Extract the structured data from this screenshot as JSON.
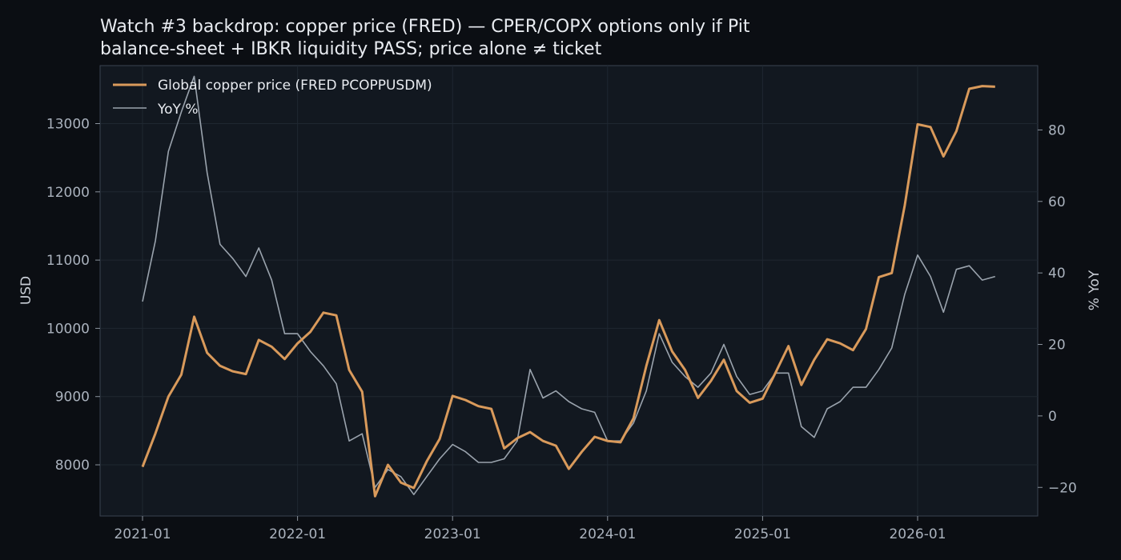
{
  "title_lines": [
    "Watch #3 backdrop: copper price (FRED) — CPER/COPX options only if Pit",
    "balance-sheet + IBKR liquidity PASS; price alone ≠ ticket"
  ],
  "colors": {
    "background": "#0b0e13",
    "plot": "#121820",
    "copper": "#d99a5b",
    "yoy": "#9aa3ad",
    "grid": "#1f2731"
  },
  "chart_data": {
    "type": "line",
    "title": "Watch #3 backdrop: copper price (FRED) — CPER/COPX options only if Pit balance-sheet + IBKR liquidity PASS; price alone ≠ ticket",
    "xlabel": "",
    "ylabel": "USD",
    "y2label": "% YoY",
    "x_ticks": [
      "2021-01",
      "2022-01",
      "2023-01",
      "2024-01",
      "2025-01",
      "2026-01"
    ],
    "ylim": [
      7250,
      13850
    ],
    "y_ticks": [
      8000,
      9000,
      10000,
      11000,
      12000,
      13000
    ],
    "y2lim": [
      -28,
      98
    ],
    "y2_ticks": [
      -20,
      0,
      20,
      40,
      60,
      80
    ],
    "y2_tick_labels": [
      "−20",
      "0",
      "20",
      "40",
      "60",
      "80"
    ],
    "legend_position": "top-left",
    "grid": true,
    "x": [
      "2021-01",
      "2021-02",
      "2021-03",
      "2021-04",
      "2021-05",
      "2021-06",
      "2021-07",
      "2021-08",
      "2021-09",
      "2021-10",
      "2021-11",
      "2021-12",
      "2022-01",
      "2022-02",
      "2022-03",
      "2022-04",
      "2022-05",
      "2022-06",
      "2022-07",
      "2022-08",
      "2022-09",
      "2022-10",
      "2022-11",
      "2022-12",
      "2023-01",
      "2023-02",
      "2023-03",
      "2023-04",
      "2023-05",
      "2023-06",
      "2023-07",
      "2023-08",
      "2023-09",
      "2023-10",
      "2023-11",
      "2023-12",
      "2024-01",
      "2024-02",
      "2024-03",
      "2024-04",
      "2024-05",
      "2024-06",
      "2024-07",
      "2024-08",
      "2024-09",
      "2024-10",
      "2024-11",
      "2024-12",
      "2025-01",
      "2025-02",
      "2025-03",
      "2025-04",
      "2025-05",
      "2025-06",
      "2025-07",
      "2025-08",
      "2025-09",
      "2025-10",
      "2025-11",
      "2025-12",
      "2026-01",
      "2026-02",
      "2026-03",
      "2026-04",
      "2026-05",
      "2026-06",
      "2026-07"
    ],
    "series": [
      {
        "name": "Global copper price (FRED PCOPPUSDM)",
        "axis": "left",
        "values": [
          7970,
          8460,
          9000,
          9320,
          10170,
          9640,
          9450,
          9370,
          9330,
          9830,
          9730,
          9550,
          9780,
          9950,
          10230,
          10190,
          9390,
          9070,
          7540,
          8000,
          7740,
          7660,
          8050,
          8380,
          9010,
          8950,
          8860,
          8820,
          8240,
          8390,
          8480,
          8350,
          8280,
          7940,
          8190,
          8410,
          8350,
          8330,
          8680,
          9450,
          10120,
          9660,
          9390,
          8980,
          9230,
          9540,
          9080,
          8910,
          8970,
          9350,
          9740,
          9170,
          9540,
          9840,
          9780,
          9680,
          9990,
          10750,
          10810,
          11800,
          12990,
          12950,
          12520,
          12890,
          13510,
          13550,
          13540
        ]
      },
      {
        "name": "YoY %",
        "axis": "right",
        "values": [
          32,
          49,
          74,
          85,
          95,
          68,
          48,
          44,
          39,
          47,
          38,
          23,
          23,
          18,
          14,
          9,
          -7,
          -5,
          -20,
          -15,
          -17,
          -22,
          -17,
          -12,
          -8,
          -10,
          -13,
          -13,
          -12,
          -7,
          13,
          5,
          7,
          4,
          2,
          1,
          -7,
          -7,
          -2,
          7,
          23,
          15,
          11,
          8,
          12,
          20,
          11,
          6,
          7,
          12,
          12,
          -3,
          -6,
          2,
          4,
          8,
          8,
          13,
          19,
          34,
          45,
          39,
          29,
          41,
          42,
          38,
          39
        ]
      }
    ]
  }
}
